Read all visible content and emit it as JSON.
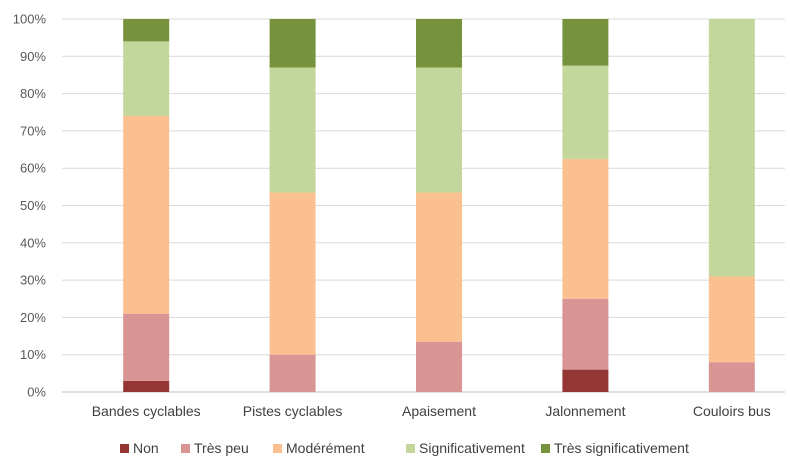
{
  "chart_data": {
    "type": "bar",
    "stacked": true,
    "title": "",
    "xlabel": "",
    "ylabel": "",
    "ylim": [
      0,
      1
    ],
    "yticks": [
      "0%",
      "10%",
      "20%",
      "30%",
      "40%",
      "50%",
      "60%",
      "70%",
      "80%",
      "90%",
      "100%"
    ],
    "grid": true,
    "legend_position": "bottom",
    "categories": [
      "Bandes cyclables",
      "Pistes cyclables",
      "Apaisement",
      "Jalonnement",
      "Couloirs bus"
    ],
    "series": [
      {
        "name": "Non",
        "color": "#943634",
        "values": [
          0.03,
          0.0,
          0.0,
          0.06,
          0.0
        ]
      },
      {
        "name": "Très peu",
        "color": "#d99594",
        "values": [
          0.18,
          0.1,
          0.135,
          0.19,
          0.08
        ]
      },
      {
        "name": "Modérément",
        "color": "#fac090",
        "values": [
          0.53,
          0.435,
          0.4,
          0.375,
          0.23
        ]
      },
      {
        "name": "Significativement",
        "color": "#c3d69b",
        "values": [
          0.2,
          0.335,
          0.335,
          0.25,
          0.69
        ]
      },
      {
        "name": "Très significativement",
        "color": "#76923c",
        "values": [
          0.06,
          0.13,
          0.13,
          0.125,
          0.0
        ]
      }
    ]
  }
}
